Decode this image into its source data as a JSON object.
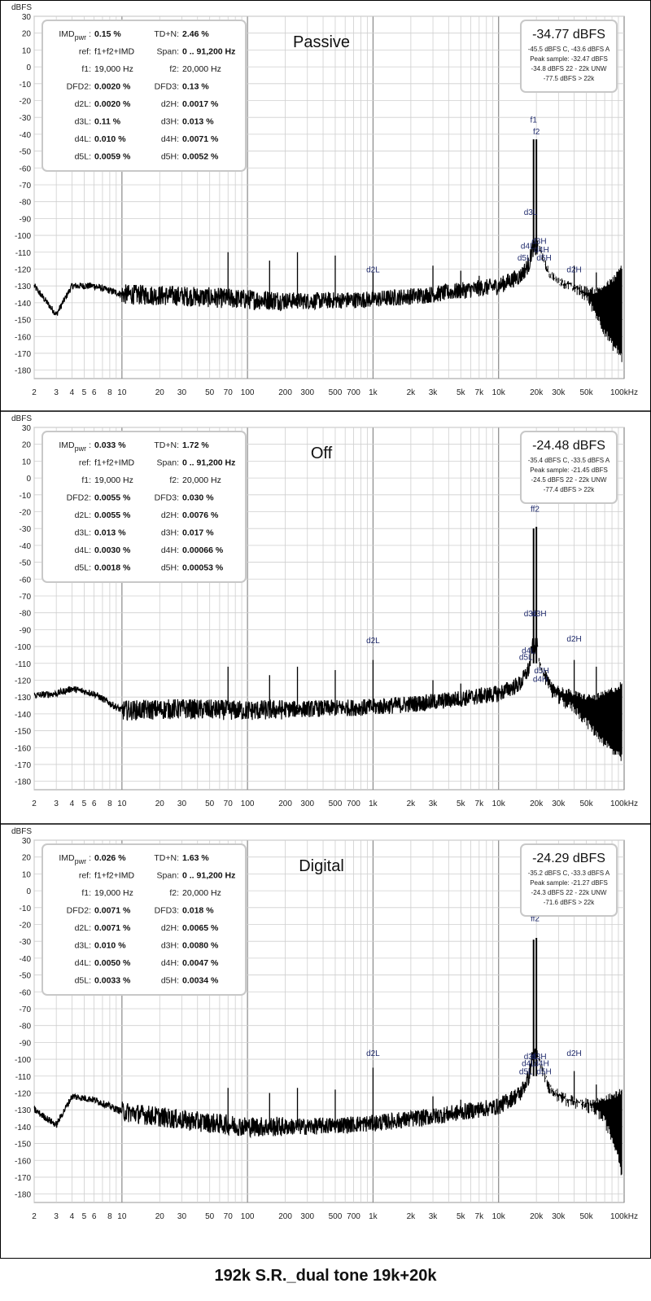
{
  "footer_title": "192k S.R._dual tone 19k+20k",
  "colors": {
    "trace": "#000000",
    "grid_major": "#8a8a8a",
    "grid_minor": "#cfcfcf",
    "marker_label": "#1f2a6b",
    "box_border": "#c8c8c8"
  },
  "chart_data": [
    {
      "type": "line",
      "title": "Passive",
      "ylabel": "dBFS",
      "xscale": "log",
      "xlim": [
        2,
        100000
      ],
      "ylim": [
        -185,
        30
      ],
      "grid": true,
      "y_ticks": [
        "30",
        "20",
        "10",
        "0",
        "-10",
        "-20",
        "-30",
        "-40",
        "-50",
        "-60",
        "-70",
        "-80",
        "-90",
        "-100",
        "-110",
        "-120",
        "-130",
        "-140",
        "-150",
        "-160",
        "-170",
        "-180"
      ],
      "x_ticks": [
        "2",
        "3",
        "4",
        "5",
        "6",
        "8",
        "10",
        "20",
        "30",
        "50",
        "70",
        "100",
        "200",
        "300",
        "500",
        "700",
        "1k",
        "2k",
        "3k",
        "5k",
        "7k",
        "10k",
        "20k",
        "30k",
        "50k",
        "100kHz"
      ],
      "stats": [
        [
          "IMDpwr:",
          "0.15 %",
          "TD+N:",
          "2.46 %"
        ],
        [
          "ref:",
          "f1+f2+IMD",
          "Span:",
          "0 .. 91,200 Hz"
        ],
        [
          "f1:",
          "19,000 Hz",
          "f2:",
          "20,000 Hz"
        ],
        [
          "DFD2:",
          "0.0020 %",
          "DFD3:",
          "0.13 %"
        ],
        [
          "d2L:",
          "0.0020 %",
          "d2H:",
          "0.0017 %"
        ],
        [
          "d3L:",
          "0.11 %",
          "d3H:",
          "0.013 %"
        ],
        [
          "d4L:",
          "0.010 %",
          "d4H:",
          "0.0071 %"
        ],
        [
          "d5L:",
          "0.0059 %",
          "d5H:",
          "0.0052 %"
        ]
      ],
      "level": {
        "main": "-34.77 dBFS",
        "lines": [
          "-45.5 dBFS C, -43.6 dBFS A",
          "Peak sample: -32.47 dBFS",
          "-34.8 dBFS 22 - 22k UNW",
          "-77.5 dBFS > 22k"
        ]
      },
      "noise_floor": {
        "x": [
          2,
          3,
          4,
          6,
          10,
          30,
          100,
          300,
          1000,
          3000,
          10000,
          15000,
          17500,
          18500
        ],
        "y": [
          -130,
          -147,
          -130,
          -130,
          -135,
          -136,
          -138,
          -139,
          -138,
          -135,
          -130,
          -124,
          -117,
          -108
        ]
      },
      "hf_region": {
        "x": [
          21000,
          25000,
          30000,
          40000,
          50000,
          60000,
          70000,
          80000,
          90000,
          96000
        ],
        "y": [
          -108,
          -123,
          -127,
          -130,
          -132,
          -133,
          -130,
          -127,
          -122,
          -118
        ],
        "min_y": [
          -110,
          -125,
          -130,
          -135,
          -140,
          -150,
          -160,
          -168,
          -172,
          -176
        ]
      },
      "spurs": [
        {
          "x": 70,
          "y": -110
        },
        {
          "x": 150,
          "y": -115
        },
        {
          "x": 250,
          "y": -110
        },
        {
          "x": 500,
          "y": -112
        },
        {
          "x": 1000,
          "y": -122
        },
        {
          "x": 3000,
          "y": -118
        },
        {
          "x": 5000,
          "y": -121
        },
        {
          "x": 7000,
          "y": -124
        },
        {
          "x": 40000,
          "y": -118
        },
        {
          "x": 60000,
          "y": -122
        }
      ],
      "tones": [
        {
          "x": 19000,
          "y": -43
        },
        {
          "x": 20000,
          "y": -43
        }
      ],
      "markers": [
        {
          "label": "f1",
          "x": 19000,
          "y": -33
        },
        {
          "label": "f2",
          "x": 20000,
          "y": -40
        },
        {
          "label": "d3L",
          "x": 18000,
          "y": -88
        },
        {
          "label": "d3H",
          "x": 21000,
          "y": -105
        },
        {
          "label": "d4L",
          "x": 17000,
          "y": -108
        },
        {
          "label": "d4H",
          "x": 22000,
          "y": -110
        },
        {
          "label": "d5L",
          "x": 16000,
          "y": -115
        },
        {
          "label": "d5H",
          "x": 23000,
          "y": -115
        },
        {
          "label": "d2L",
          "x": 1000,
          "y": -122
        },
        {
          "label": "d2H",
          "x": 40000,
          "y": -122
        }
      ]
    },
    {
      "type": "line",
      "title": "Off",
      "ylabel": "dBFS",
      "xscale": "log",
      "xlim": [
        2,
        100000
      ],
      "ylim": [
        -185,
        30
      ],
      "grid": true,
      "y_ticks": [
        "30",
        "20",
        "10",
        "0",
        "-10",
        "-20",
        "-30",
        "-40",
        "-50",
        "-60",
        "-70",
        "-80",
        "-90",
        "-100",
        "-110",
        "-120",
        "-130",
        "-140",
        "-150",
        "-160",
        "-170",
        "-180"
      ],
      "x_ticks": [
        "2",
        "3",
        "4",
        "5",
        "6",
        "8",
        "10",
        "20",
        "30",
        "50",
        "70",
        "100",
        "200",
        "300",
        "500",
        "700",
        "1k",
        "2k",
        "3k",
        "5k",
        "7k",
        "10k",
        "20k",
        "30k",
        "50k",
        "100kHz"
      ],
      "stats": [
        [
          "IMDpwr:",
          "0.033 %",
          "TD+N:",
          "1.72 %"
        ],
        [
          "ref:",
          "f1+f2+IMD",
          "Span:",
          "0 .. 91,200 Hz"
        ],
        [
          "f1:",
          "19,000 Hz",
          "f2:",
          "20,000 Hz"
        ],
        [
          "DFD2:",
          "0.0055 %",
          "DFD3:",
          "0.030 %"
        ],
        [
          "d2L:",
          "0.0055 %",
          "d2H:",
          "0.0076 %"
        ],
        [
          "d3L:",
          "0.013 %",
          "d3H:",
          "0.017 %"
        ],
        [
          "d4L:",
          "0.0030 %",
          "d4H:",
          "0.00066 %"
        ],
        [
          "d5L:",
          "0.0018 %",
          "d5H:",
          "0.00053 %"
        ]
      ],
      "level": {
        "main": "-24.48 dBFS",
        "lines": [
          "-35.4 dBFS C, -33.5 dBFS A",
          "Peak sample: -21.45 dBFS",
          "-24.5 dBFS 22 - 22k UNW",
          "-77.4 dBFS > 22k"
        ]
      },
      "noise_floor": {
        "x": [
          2,
          3,
          4,
          6,
          10,
          30,
          100,
          300,
          1000,
          3000,
          10000,
          15000,
          17500,
          18500
        ],
        "y": [
          -129,
          -128,
          -125,
          -128,
          -138,
          -137,
          -138,
          -137,
          -136,
          -133,
          -128,
          -122,
          -113,
          -100
        ]
      },
      "hf_region": {
        "x": [
          21000,
          25000,
          30000,
          40000,
          50000,
          60000,
          70000,
          80000,
          90000,
          96000
        ],
        "y": [
          -108,
          -120,
          -125,
          -128,
          -130,
          -130,
          -128,
          -126,
          -124,
          -122
        ],
        "min_y": [
          -112,
          -128,
          -135,
          -140,
          -148,
          -155,
          -160,
          -165,
          -168,
          -170
        ]
      },
      "spurs": [
        {
          "x": 70,
          "y": -112
        },
        {
          "x": 150,
          "y": -117
        },
        {
          "x": 250,
          "y": -112
        },
        {
          "x": 500,
          "y": -114
        },
        {
          "x": 1000,
          "y": -108
        },
        {
          "x": 3000,
          "y": -120
        },
        {
          "x": 5000,
          "y": -122
        },
        {
          "x": 7000,
          "y": -125
        },
        {
          "x": 40000,
          "y": -108
        },
        {
          "x": 60000,
          "y": -112
        }
      ],
      "tones": [
        {
          "x": 19000,
          "y": -30
        },
        {
          "x": 20000,
          "y": -29
        }
      ],
      "markers": [
        {
          "label": "ff2",
          "x": 19500,
          "y": -20
        },
        {
          "label": "d3L",
          "x": 18000,
          "y": -82
        },
        {
          "label": "d3H",
          "x": 21000,
          "y": -82
        },
        {
          "label": "d4L",
          "x": 17300,
          "y": -104
        },
        {
          "label": "d5L",
          "x": 16500,
          "y": -108
        },
        {
          "label": "d5H",
          "x": 22000,
          "y": -116
        },
        {
          "label": "d4H",
          "x": 21500,
          "y": -121
        },
        {
          "label": "d2L",
          "x": 1000,
          "y": -98
        },
        {
          "label": "d2H",
          "x": 40000,
          "y": -97
        }
      ]
    },
    {
      "type": "line",
      "title": "Digital",
      "ylabel": "dBFS",
      "xscale": "log",
      "xlim": [
        2,
        100000
      ],
      "ylim": [
        -185,
        30
      ],
      "grid": true,
      "y_ticks": [
        "30",
        "20",
        "10",
        "0",
        "-10",
        "-20",
        "-30",
        "-40",
        "-50",
        "-60",
        "-70",
        "-80",
        "-90",
        "-100",
        "-110",
        "-120",
        "-130",
        "-140",
        "-150",
        "-160",
        "-170",
        "-180"
      ],
      "x_ticks": [
        "2",
        "3",
        "4",
        "5",
        "6",
        "8",
        "10",
        "20",
        "30",
        "50",
        "70",
        "100",
        "200",
        "300",
        "500",
        "700",
        "1k",
        "2k",
        "3k",
        "5k",
        "7k",
        "10k",
        "20k",
        "30k",
        "50k",
        "100kHz"
      ],
      "stats": [
        [
          "IMDpwr:",
          "0.026 %",
          "TD+N:",
          "1.63 %"
        ],
        [
          "ref:",
          "f1+f2+IMD",
          "Span:",
          "0 .. 91,200 Hz"
        ],
        [
          "f1:",
          "19,000 Hz",
          "f2:",
          "20,000 Hz"
        ],
        [
          "DFD2:",
          "0.0071 %",
          "DFD3:",
          "0.018 %"
        ],
        [
          "d2L:",
          "0.0071 %",
          "d2H:",
          "0.0065 %"
        ],
        [
          "d3L:",
          "0.010 %",
          "d3H:",
          "0.0080 %"
        ],
        [
          "d4L:",
          "0.0050 %",
          "d4H:",
          "0.0047 %"
        ],
        [
          "d5L:",
          "0.0033 %",
          "d5H:",
          "0.0034 %"
        ]
      ],
      "level": {
        "main": "-24.29 dBFS",
        "lines": [
          "-35.2 dBFS C, -33.3 dBFS A",
          "Peak sample: -21.27 dBFS",
          "-24.3 dBFS 22 - 22k UNW",
          "-71.6 dBFS > 22k"
        ]
      },
      "noise_floor": {
        "x": [
          2,
          3,
          4,
          6,
          10,
          30,
          100,
          300,
          1000,
          3000,
          10000,
          15000,
          17500,
          18500
        ],
        "y": [
          -130,
          -139,
          -122,
          -124,
          -131,
          -136,
          -140,
          -140,
          -138,
          -134,
          -128,
          -120,
          -110,
          -98
        ]
      },
      "hf_region": {
        "x": [
          21000,
          25000,
          30000,
          40000,
          50000,
          60000,
          70000,
          80000,
          90000,
          96000
        ],
        "y": [
          -100,
          -115,
          -120,
          -124,
          -125,
          -125,
          -123,
          -122,
          -120,
          -118
        ],
        "min_y": [
          -104,
          -120,
          -126,
          -130,
          -132,
          -134,
          -140,
          -150,
          -160,
          -172
        ]
      },
      "spurs": [
        {
          "x": 70,
          "y": -117
        },
        {
          "x": 150,
          "y": -120
        },
        {
          "x": 250,
          "y": -117
        },
        {
          "x": 500,
          "y": -118
        },
        {
          "x": 1000,
          "y": -105
        },
        {
          "x": 3000,
          "y": -122
        },
        {
          "x": 5000,
          "y": -124
        },
        {
          "x": 7000,
          "y": -127
        },
        {
          "x": 40000,
          "y": -107
        },
        {
          "x": 60000,
          "y": -115
        }
      ],
      "tones": [
        {
          "x": 19000,
          "y": -29
        },
        {
          "x": 20000,
          "y": -28
        }
      ],
      "markers": [
        {
          "label": "ff2",
          "x": 19500,
          "y": -18
        },
        {
          "label": "d3L",
          "x": 18000,
          "y": -100
        },
        {
          "label": "d3H",
          "x": 21000,
          "y": -100
        },
        {
          "label": "d4L",
          "x": 17300,
          "y": -104
        },
        {
          "label": "d4H",
          "x": 22000,
          "y": -104
        },
        {
          "label": "d5L",
          "x": 16500,
          "y": -109
        },
        {
          "label": "d5H",
          "x": 23000,
          "y": -109
        },
        {
          "label": "d2L",
          "x": 1000,
          "y": -98
        },
        {
          "label": "d2H",
          "x": 40000,
          "y": -98
        }
      ]
    }
  ]
}
